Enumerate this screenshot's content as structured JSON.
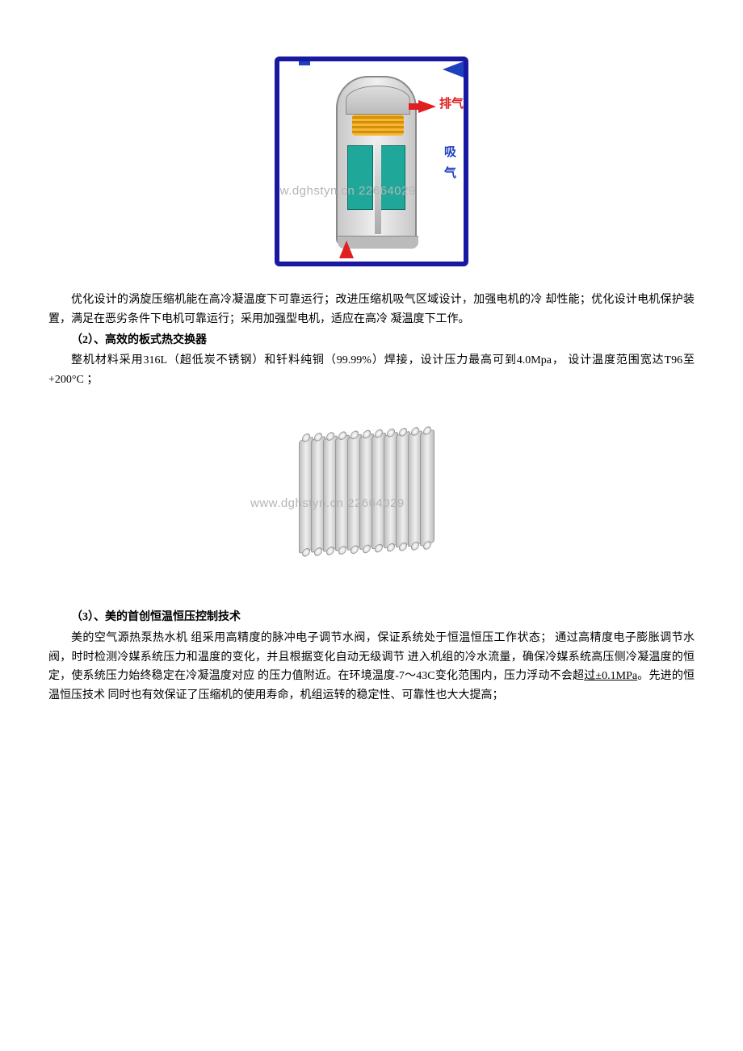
{
  "figure1": {
    "label_exhaust": "排气",
    "label_intake": "吸气",
    "watermark": "www.dghstyn.cn 22664029",
    "border_color": "#1818a0",
    "arrow_red": "#e02020",
    "arrow_blue": "#2040c0",
    "motor_color": "#1fa89a",
    "scroll_color": "#f7b733"
  },
  "para1": "优化设计的涡旋压缩机能在高冷凝温度下可靠运行；改进压缩机吸气区域设计，加强电机的冷 却性能；优化设计电机保护装置，满足在恶劣条件下电机可靠运行；采用加强型电机，适应在高冷 凝温度下工作。",
  "sub2": "（2）、高效的板式热交换器",
  "para2": "整机材料采用316L（超低炭不锈钢）和钎料纯铜（99.99%）焊接，设计压力最高可到4.0Mpa， 设计温度范围宽达T96至+200°C ；",
  "figure2": {
    "watermark": "www.dghstyn.cn 22664029",
    "plate_count": 11,
    "plate_color": "#cfcfcf"
  },
  "sub3": "（3）、美的首创恒温恒压控制技术",
  "para3_a": "美的空气源热泵热水机 组采用高精度的脉冲电子调节水阀，保证系统处于恒温恒压工作状态； 通过高精度电子膨胀调节水阀，时时检测冷媒系统压力和温度的变化，并且根据变化自动无级调节 进入机组的冷水流量，确保冷媒系统高压侧冷凝温度的恒定，使系统压力始终稳定在冷凝温度对应 的压力值附近。在环境温度-7〜43C变化范围内，压力浮动不会超",
  "para3_u": "过±0.1MPa",
  "para3_b": "。先进的恒温恒压技术 同时也有效保证了压缩机的使用寿命，机组运转的稳定性、可靠性也大大提高；"
}
